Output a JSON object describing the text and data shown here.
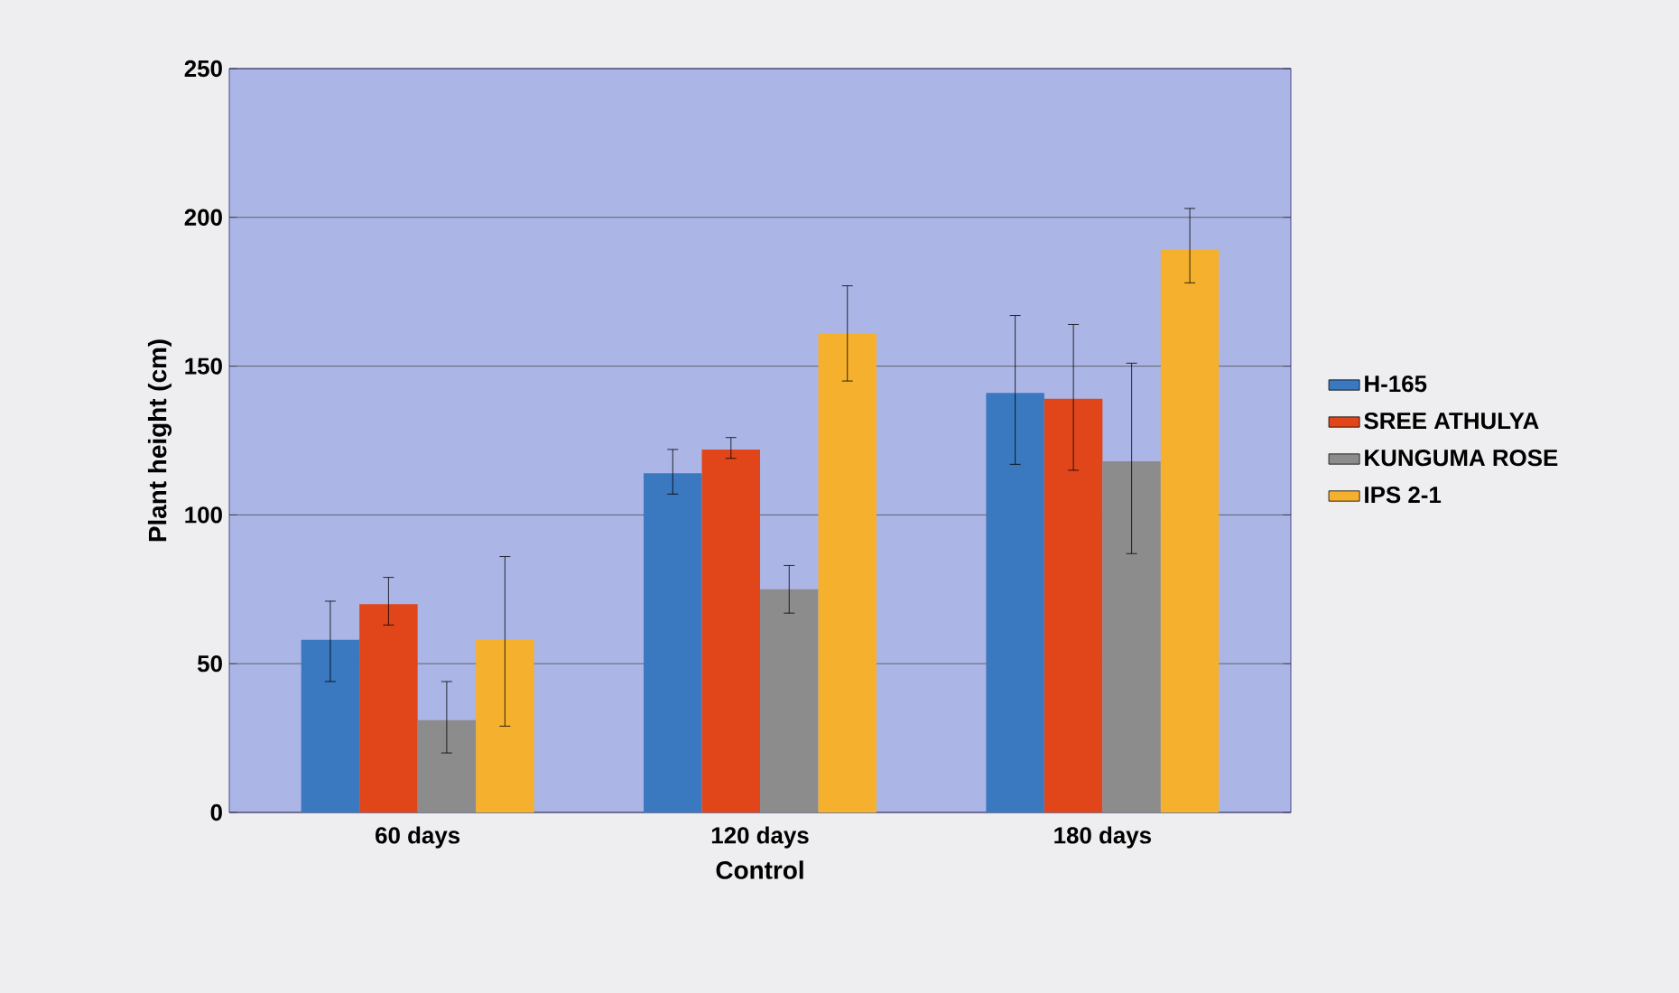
{
  "chart_data": {
    "type": "bar",
    "xlabel": "Control",
    "ylabel": "Plant height (cm)",
    "categories": [
      "60 days",
      "120 days",
      "180 days"
    ],
    "series": [
      {
        "name": "H-165",
        "color": "#3a78c0",
        "values": [
          58,
          114,
          141
        ],
        "errors": [
          [
            44,
            71
          ],
          [
            107,
            122
          ],
          [
            117,
            167
          ]
        ]
      },
      {
        "name": "SREE ATHULYA",
        "color": "#e0461a",
        "values": [
          70,
          122,
          139
        ],
        "errors": [
          [
            63,
            79
          ],
          [
            119,
            126
          ],
          [
            115,
            164
          ]
        ]
      },
      {
        "name": "KUNGUMA ROSE",
        "color": "#8c8c8c",
        "values": [
          31,
          75,
          118
        ],
        "errors": [
          [
            20,
            44
          ],
          [
            67,
            83
          ],
          [
            87,
            151
          ]
        ]
      },
      {
        "name": "IPS 2-1",
        "color": "#f5b02e",
        "values": [
          58,
          161,
          189
        ],
        "errors": [
          [
            29,
            86
          ],
          [
            145,
            177
          ],
          [
            178,
            203
          ]
        ]
      }
    ],
    "ylim": [
      0,
      250
    ],
    "yticks": [
      0,
      50,
      100,
      150,
      200,
      250
    ],
    "grid": "y",
    "legend": "right"
  }
}
